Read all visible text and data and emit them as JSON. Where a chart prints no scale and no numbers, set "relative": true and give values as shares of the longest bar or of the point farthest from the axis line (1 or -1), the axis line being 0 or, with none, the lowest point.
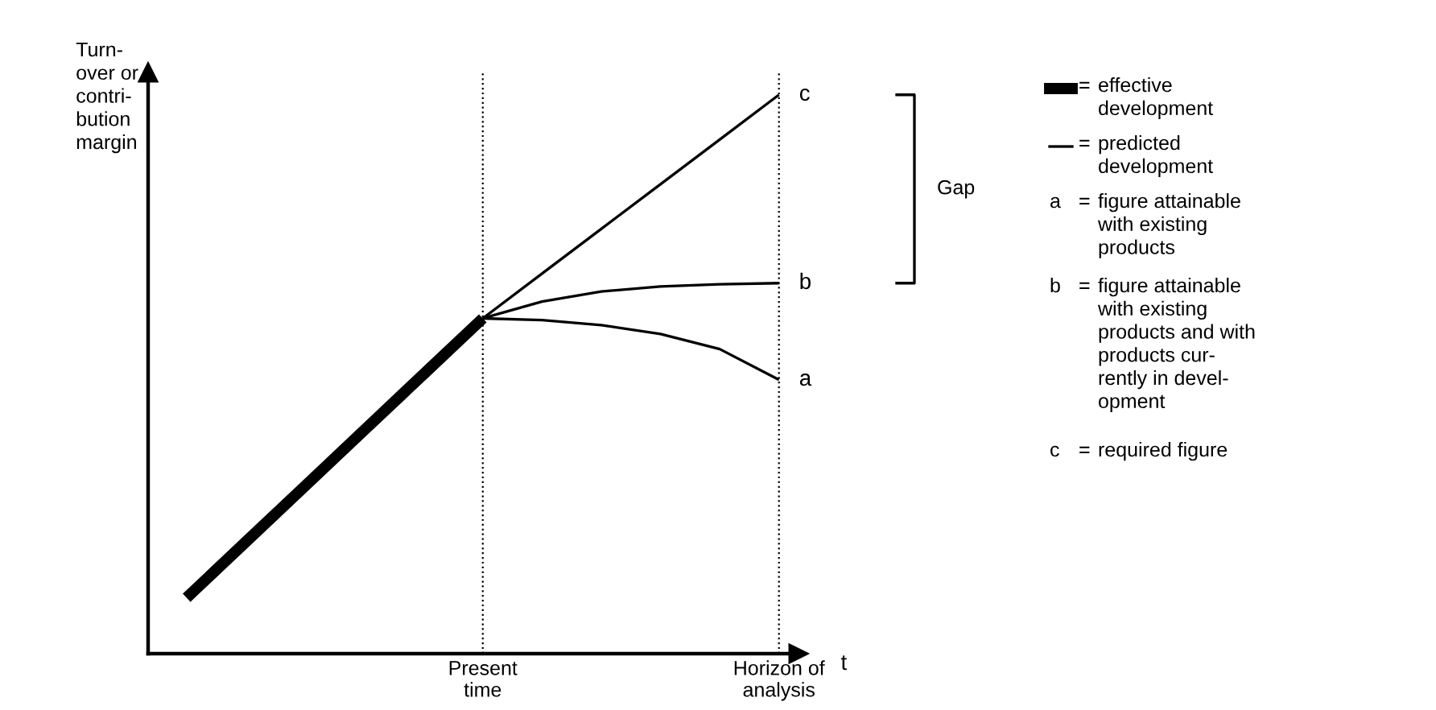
{
  "chart_data": {
    "type": "line",
    "relative": true,
    "xlabel": "t",
    "ylabel": "Turn-\nover or\ncontri-\nbution\nmargin",
    "categories": [
      null,
      null,
      null,
      null,
      null,
      "Present\ntime",
      null,
      null,
      null,
      null,
      "Horizon of\nanalysis"
    ],
    "series": [
      {
        "color": "#000000",
        "values": [
          0.1,
          0.2,
          0.3,
          0.4,
          0.5,
          0.6,
          null,
          null,
          null,
          null,
          null
        ]
      },
      {
        "name": "c",
        "color": "#000000",
        "values": [
          null,
          null,
          null,
          null,
          null,
          0.6,
          0.68,
          0.76,
          0.84,
          0.92,
          1.0
        ]
      },
      {
        "name": "b",
        "color": "#000000",
        "values": [
          null,
          null,
          null,
          null,
          null,
          0.6,
          0.63,
          0.648,
          0.657,
          0.661,
          0.663
        ]
      },
      {
        "name": "a",
        "color": "#000000",
        "values": [
          null,
          null,
          null,
          null,
          null,
          0.6,
          0.597,
          0.588,
          0.572,
          0.545,
          0.49
        ]
      }
    ],
    "ref_lines": [
      {
        "axis": "x",
        "value": "Present\ntime",
        "line_style": "dotted"
      },
      {
        "axis": "x",
        "value": "Horizon of\nanalysis",
        "line_style": "dotted"
      }
    ],
    "annotations": [
      "= effective\ndevelopment",
      "= predicted\ndevelopment",
      "a = figure attainable\nwith existing\nproducts",
      "b = figure attainable\nwith existing\nproducts and with\nproducts cur-\nrently in devel-\nopment",
      "c = required figure",
      "Gap"
    ],
    "grid": false,
    "legend": false,
    "marker": "none",
    "line_style": "solid"
  }
}
